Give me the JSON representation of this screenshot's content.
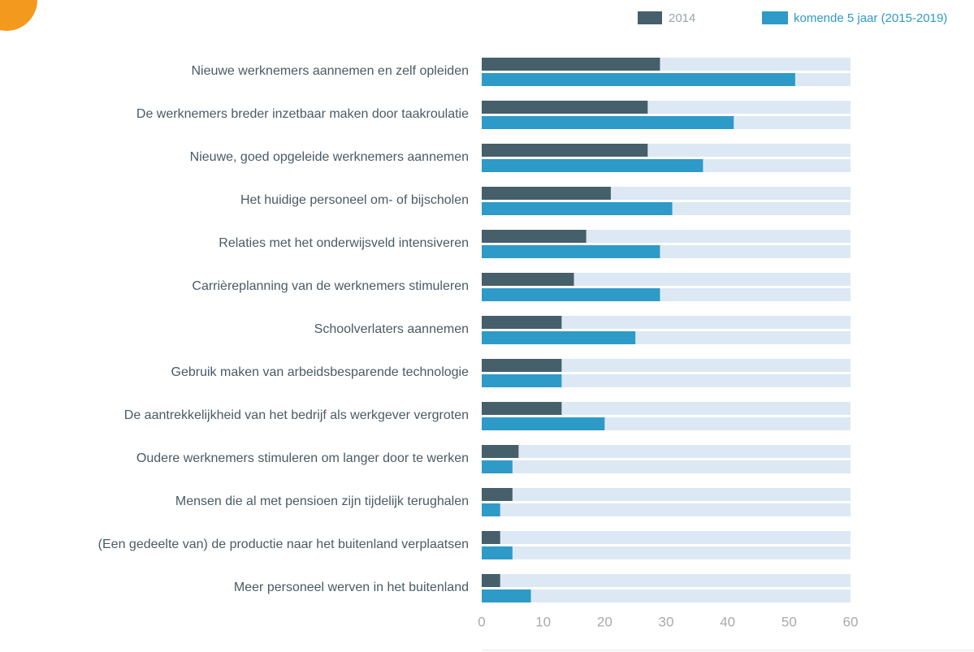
{
  "chart_data": {
    "type": "bar",
    "orientation": "horizontal",
    "categories": [
      "Nieuwe werknemers aannemen en zelf opleiden",
      "De werknemers breder inzetbaar maken door taakroulatie",
      "Nieuwe, goed opgeleide werknemers aannemen",
      "Het huidige personeel om- of bijscholen",
      "Relaties met het onderwijsveld intensiveren",
      "Carrièreplanning van de werknemers stimuleren",
      "Schoolverlaters aannemen",
      "Gebruik maken van arbeidsbesparende technologie",
      "De aantrekkelijkheid van het bedrijf als werkgever vergroten",
      "Oudere werknemers stimuleren om langer door te werken",
      "Mensen die al met pensioen zijn tijdelijk terughalen",
      "(Een gedeelte van) de productie naar het buitenland verplaatsen",
      "Meer personeel werven in het buitenland"
    ],
    "series": [
      {
        "name": "2014",
        "color": "#455f6b",
        "values": [
          29,
          27,
          27,
          21,
          17,
          15,
          13,
          13,
          13,
          6,
          5,
          3,
          3
        ]
      },
      {
        "name": "komende 5 jaar (2015-2019)",
        "color": "#2e9ac7",
        "values": [
          51,
          41,
          36,
          31,
          29,
          29,
          25,
          13,
          20,
          5,
          3,
          5,
          8
        ]
      }
    ],
    "track_color": "#dce9f4",
    "xlim": [
      0,
      60
    ],
    "xticks": [
      0,
      10,
      20,
      30,
      40,
      50,
      60
    ],
    "legend": "top-right"
  }
}
